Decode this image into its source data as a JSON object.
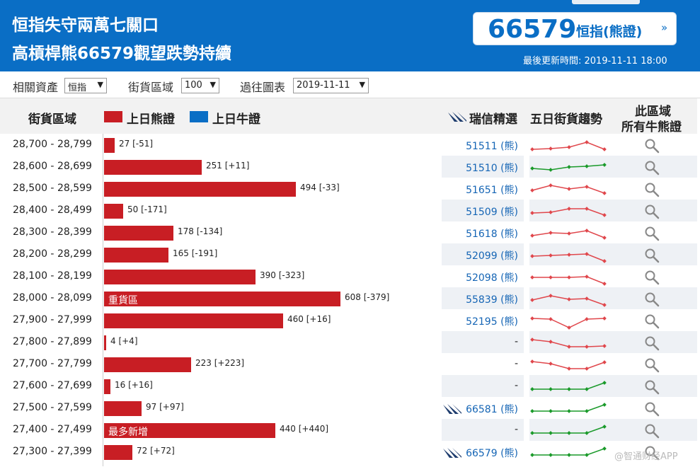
{
  "header": {
    "title_line1": "恒指失守兩萬七關口",
    "title_line2": "高槓桿熊66579觀望跌勢持續",
    "index_number": "66579",
    "index_name": "恒指(熊證)",
    "arrow": "»",
    "update_time": "最後更新時間: 2019-11-11 18:00"
  },
  "filters": {
    "asset_label": "相關資產",
    "asset_value": "恒指",
    "zone_label": "街貨區域",
    "zone_value": "100",
    "history_label": "過往圖表",
    "history_value": "2019-11-11"
  },
  "columns": {
    "zone": "街貨區域",
    "bear_legend": "上日熊證",
    "bull_legend": "上日牛證",
    "picks": "瑞信精選",
    "trend": "五日街貨趨勢",
    "all_line1": "此區域",
    "all_line2": "所有牛熊證"
  },
  "colors": {
    "bear": "#c81e24",
    "bull": "#0a6ec5",
    "trend_up": "#1a9a2a",
    "trend_down": "#e0474c"
  },
  "max_value": 608,
  "rows": [
    {
      "range": "28,700 - 28,799",
      "value": 27,
      "label": "27 [-51]",
      "tag": "",
      "code": "51511 (熊)",
      "cs": false,
      "trend": "down",
      "points": [
        7,
        6,
        4,
        -3,
        7
      ]
    },
    {
      "range": "28,600 - 28,699",
      "value": 251,
      "label": "251 [+11]",
      "tag": "",
      "code": "51510 (熊)",
      "cs": false,
      "trend": "up",
      "points": [
        3,
        5,
        1,
        0,
        -2
      ]
    },
    {
      "range": "28,500 - 28,599",
      "value": 494,
      "label": "494 [-33]",
      "tag": "",
      "code": "51651 (熊)",
      "cs": false,
      "trend": "down",
      "points": [
        3,
        -4,
        1,
        -2,
        7
      ]
    },
    {
      "range": "28,400 - 28,499",
      "value": 50,
      "label": "50 [-171]",
      "tag": "",
      "code": "51509 (熊)",
      "cs": false,
      "trend": "down",
      "points": [
        4,
        3,
        -2,
        -2,
        7
      ]
    },
    {
      "range": "28,300 - 28,399",
      "value": 178,
      "label": "178 [-134]",
      "tag": "",
      "code": "51618 (熊)",
      "cs": false,
      "trend": "down",
      "points": [
        5,
        1,
        2,
        -2,
        8
      ]
    },
    {
      "range": "28,200 - 28,299",
      "value": 165,
      "label": "165 [-191]",
      "tag": "",
      "code": "52099 (熊)",
      "cs": false,
      "trend": "down",
      "points": [
        3,
        2,
        1,
        0,
        10
      ]
    },
    {
      "range": "28,100 - 28,199",
      "value": 390,
      "label": "390 [-323]",
      "tag": "",
      "code": "52098 (熊)",
      "cs": false,
      "trend": "down",
      "points": [
        2,
        2,
        2,
        1,
        11
      ]
    },
    {
      "range": "28,000 - 28,099",
      "value": 608,
      "label": "608 [-379]",
      "tag": "重貨區",
      "code": "55839 (熊)",
      "cs": false,
      "trend": "down",
      "points": [
        3,
        -3,
        2,
        1,
        10
      ]
    },
    {
      "range": "27,900 - 27,999",
      "value": 460,
      "label": "460 [+16]",
      "tag": "",
      "code": "52195 (熊)",
      "cs": false,
      "trend": "down",
      "points": [
        -2,
        -1,
        11,
        -1,
        -2
      ]
    },
    {
      "range": "27,800 - 27,899",
      "value": 4,
      "label": "4 [+4]",
      "tag": "",
      "code": "-",
      "cs": false,
      "trend": "down",
      "points": [
        -3,
        0,
        7,
        7,
        6
      ]
    },
    {
      "range": "27,700 - 27,799",
      "value": 223,
      "label": "223 [+223]",
      "tag": "",
      "code": "-",
      "cs": false,
      "trend": "down",
      "points": [
        -3,
        0,
        7,
        7,
        -2
      ]
    },
    {
      "range": "27,600 - 27,699",
      "value": 16,
      "label": "16 [+16]",
      "tag": "",
      "code": "-",
      "cs": false,
      "trend": "up",
      "points": [
        5,
        5,
        5,
        5,
        -4
      ]
    },
    {
      "range": "27,500 - 27,599",
      "value": 97,
      "label": "97 [+97]",
      "tag": "",
      "code": "66581 (熊)",
      "cs": true,
      "trend": "up",
      "points": [
        5,
        5,
        5,
        5,
        -4
      ]
    },
    {
      "range": "27,400 - 27,499",
      "value": 440,
      "label": "440 [+440]",
      "tag": "最多新增",
      "code": "-",
      "cs": false,
      "trend": "up",
      "points": [
        5,
        5,
        5,
        5,
        -4
      ]
    },
    {
      "range": "27,300 - 27,399",
      "value": 72,
      "label": "72 [+72]",
      "tag": "",
      "code": "66579 (熊)",
      "cs": true,
      "trend": "up",
      "points": [
        5,
        5,
        5,
        5,
        -4
      ]
    }
  ],
  "watermark": "@智通财经APP"
}
